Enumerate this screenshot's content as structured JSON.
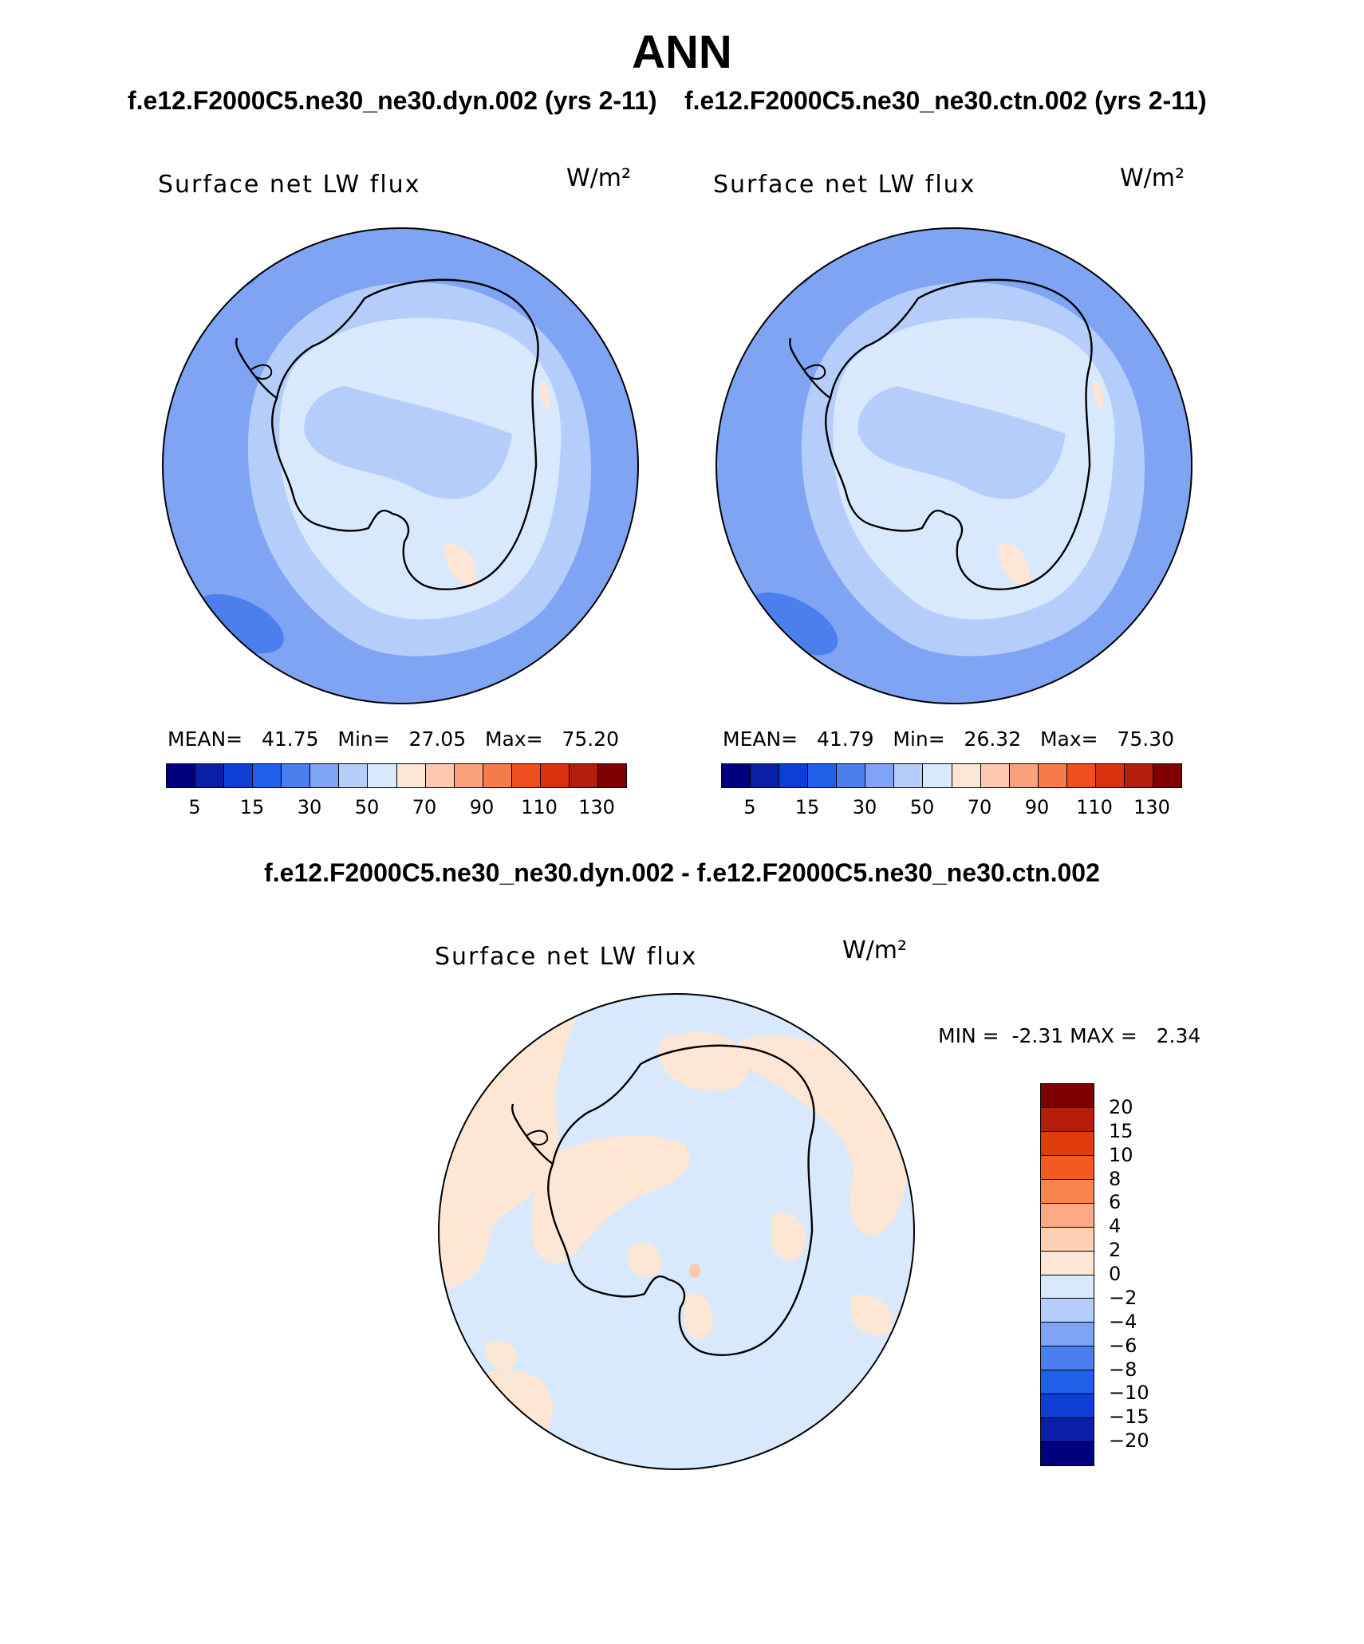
{
  "header": {
    "title": "ANN",
    "run_left": "f.e12.F2000C5.ne30_ne30.dyn.002 (yrs 2-11)",
    "run_right": "f.e12.F2000C5.ne30_ne30.ctn.002 (yrs 2-11)",
    "diff_title": "f.e12.F2000C5.ne30_ne30.dyn.002 - f.e12.F2000C5.ne30_ne30.ctn.002"
  },
  "panels": [
    {
      "variable": "Surface net LW flux",
      "units": "W/m²",
      "mean_label": "MEAN=",
      "mean": "41.75",
      "min_label": "Min=",
      "min": "27.05",
      "max_label": "Max=",
      "max": "75.20"
    },
    {
      "variable": "Surface net LW flux",
      "units": "W/m²",
      "mean_label": "MEAN=",
      "mean": "41.79",
      "min_label": "Min=",
      "min": "26.32",
      "max_label": "Max=",
      "max": "75.30"
    }
  ],
  "diff_panel": {
    "variable": "Surface net LW flux",
    "units": "W/m²",
    "min_label": "MIN =",
    "min": "-2.31",
    "max_label": "MAX =",
    "max": "2.34"
  },
  "colorbar_main": {
    "colors": [
      "#00007f",
      "#0a1fa8",
      "#0d3fd6",
      "#1f5fea",
      "#4c7fee",
      "#7fa4f4",
      "#b4cdfa",
      "#d8e8fd",
      "#fde6d4",
      "#fcc8b0",
      "#f8a37e",
      "#f57a4c",
      "#ef4e1f",
      "#d9300e",
      "#b51e0a",
      "#7f0000"
    ],
    "tick_labels": [
      "5",
      "15",
      "30",
      "50",
      "70",
      "90",
      "110",
      "130"
    ]
  },
  "colorbar_diff": {
    "colors": [
      "#7f0000",
      "#b51e0a",
      "#e03c0c",
      "#f25a1f",
      "#f8864c",
      "#fcab84",
      "#fdd0b4",
      "#fde6d4",
      "#d8e8fd",
      "#b4cdfa",
      "#7fa4f4",
      "#4c7fee",
      "#1f5fea",
      "#0d3fd6",
      "#0a1fa8",
      "#00007f"
    ],
    "tick_labels": [
      "20",
      "15",
      "10",
      "8",
      "6",
      "4",
      "2",
      "0",
      "−2",
      "−4",
      "−6",
      "−8",
      "−10",
      "−15",
      "−20"
    ]
  },
  "map_colors": {
    "ocean_outer": "#7fa4f4",
    "ocean_dark": "#4c7fee",
    "mid_ring": "#b4cdfa",
    "inner": "#d8e8fd",
    "warm": "#fde6d4",
    "diff_neg": "#d8e8fd",
    "diff_pos": "#fde6d4",
    "diff_hot": "#fcc8b0"
  }
}
